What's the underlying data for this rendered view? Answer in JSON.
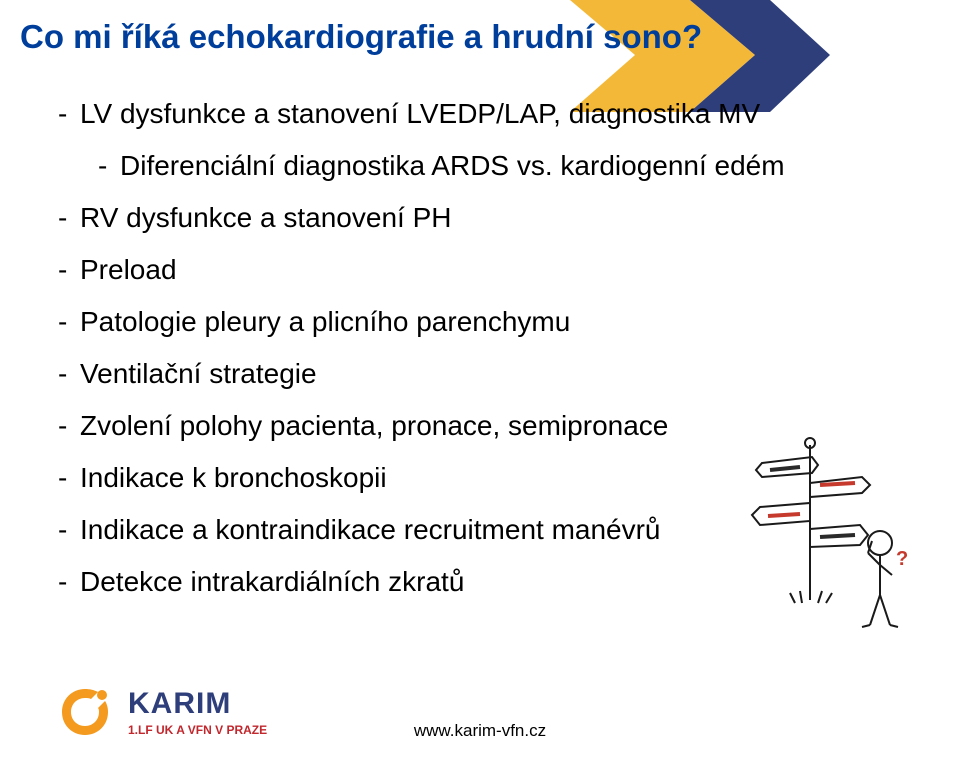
{
  "title": {
    "text": "Co mi říká echokardiografie a hrudní sono?",
    "color": "#003e9b",
    "fontsize": 33
  },
  "bullets": {
    "color": "#000000",
    "fontsize": 28,
    "line_gap": 48,
    "items": [
      {
        "text": "LV dysfunkce a stanovení LVEDP/LAP, diagnostika MV",
        "sub": [
          {
            "text": "Diferenciální diagnostika ARDS vs. kardiogenní edém"
          }
        ]
      },
      {
        "text": "RV dysfunkce a stanovení PH"
      },
      {
        "text": "Preload"
      },
      {
        "text": "Patologie pleury a plicního parenchymu"
      },
      {
        "text": "Ventilační strategie"
      },
      {
        "text": "Zvolení polohy pacienta, pronace, semipronace"
      },
      {
        "text": "Indikace k bronchoskopii"
      },
      {
        "text": "Indikace a kontraindikace recruitment manévrů"
      },
      {
        "text": "Detekce intrakardiálních zkratů"
      }
    ]
  },
  "chevron": {
    "colors": {
      "yellow": "#f4b838",
      "blue": "#2d3e7a"
    }
  },
  "signpost": {
    "line_color": "#1a1a1a",
    "line_width": 2,
    "arrow_colors": [
      "#2a2a2a",
      "#c63a2d",
      "#c63a2d",
      "#2a2a2a"
    ]
  },
  "logo": {
    "mark_color": "#f39a1f",
    "text_main": "KARIM",
    "text_main_color": "#2d3e7a",
    "text_main_fontsize": 30,
    "text_sub": "1.LF UK A VFN V PRAZE",
    "text_sub_color": "#c1272d",
    "text_sub_fontsize": 12
  },
  "footer": {
    "text": "www.karim-vfn.cz",
    "color": "#000000",
    "fontsize": 17
  }
}
